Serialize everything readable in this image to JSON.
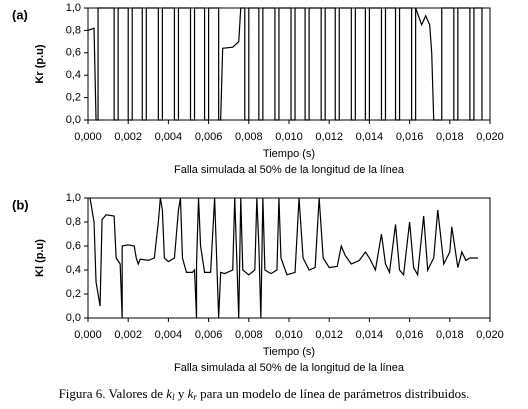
{
  "chart_data": [
    {
      "type": "line",
      "label": "(a)",
      "ylabel": "Kr (p.u)",
      "xlabel": "Tiempo (s)",
      "note": "Falla simulada al 50% de la longitud de la línea",
      "color": "#000000",
      "xlim": [
        0,
        0.02
      ],
      "ylim": [
        0,
        1
      ],
      "xticks": [
        {
          "value": 0,
          "label": "0,000"
        },
        {
          "value": 0.002,
          "label": "0,002"
        },
        {
          "value": 0.004,
          "label": "0,004"
        },
        {
          "value": 0.006,
          "label": "0,006"
        },
        {
          "value": 0.008,
          "label": "0,008"
        },
        {
          "value": 0.01,
          "label": "0,010"
        },
        {
          "value": 0.012,
          "label": "0,012"
        },
        {
          "value": 0.014,
          "label": "0,014"
        },
        {
          "value": 0.016,
          "label": "0,016"
        },
        {
          "value": 0.018,
          "label": "0,018"
        },
        {
          "value": 0.02,
          "label": "0,020"
        }
      ],
      "yticks": [
        {
          "value": 0,
          "label": "0,0"
        },
        {
          "value": 0.2,
          "label": "0,2"
        },
        {
          "value": 0.4,
          "label": "0,4"
        },
        {
          "value": 0.6,
          "label": "0,6"
        },
        {
          "value": 0.8,
          "label": "0,8"
        },
        {
          "value": 1,
          "label": "1,0"
        }
      ],
      "x": [
        0,
        0.0003,
        0.0004,
        0.0005,
        0.0005,
        0.0013,
        0.0013,
        0.0015,
        0.0015,
        0.002,
        0.002,
        0.0022,
        0.0022,
        0.0027,
        0.0027,
        0.0029,
        0.0029,
        0.0035,
        0.0035,
        0.0037,
        0.0037,
        0.0043,
        0.0043,
        0.0045,
        0.0045,
        0.0051,
        0.0051,
        0.0053,
        0.0053,
        0.0058,
        0.0058,
        0.006,
        0.006,
        0.0065,
        0.0065,
        0.0066,
        0.0067,
        0.0072,
        0.0075,
        0.0076,
        0.0078,
        0.0078,
        0.008,
        0.008,
        0.0085,
        0.0085,
        0.0087,
        0.0087,
        0.0093,
        0.0093,
        0.0095,
        0.0095,
        0.0101,
        0.0101,
        0.0103,
        0.0103,
        0.0108,
        0.0108,
        0.011,
        0.011,
        0.0116,
        0.0116,
        0.0118,
        0.0118,
        0.0123,
        0.0123,
        0.0125,
        0.0125,
        0.0131,
        0.0131,
        0.0133,
        0.0133,
        0.0138,
        0.0138,
        0.014,
        0.014,
        0.0146,
        0.0146,
        0.0148,
        0.0148,
        0.0153,
        0.0153,
        0.0155,
        0.0155,
        0.0161,
        0.0161,
        0.0163,
        0.0163,
        0.0166,
        0.0168,
        0.017,
        0.0171,
        0.0172,
        0.0176,
        0.0176,
        0.0182,
        0.0182,
        0.0184,
        0.0184,
        0.019,
        0.019,
        0.0192,
        0.0192,
        0.0196,
        0.0196
      ],
      "values": [
        0.8,
        0.82,
        0,
        0,
        1,
        1,
        0,
        0,
        1,
        1,
        0,
        0,
        1,
        1,
        0,
        0,
        1,
        1,
        0,
        0,
        1,
        1,
        0,
        0,
        1,
        1,
        0,
        0,
        1,
        1,
        0,
        0,
        1,
        1,
        0,
        0,
        0.64,
        0.65,
        0.7,
        1,
        1,
        0,
        0,
        1,
        1,
        0,
        0,
        1,
        1,
        0,
        0,
        1,
        1,
        0,
        0,
        1,
        1,
        0,
        0,
        1,
        1,
        0,
        0,
        1,
        1,
        0,
        0,
        1,
        1,
        0,
        0,
        1,
        1,
        0,
        0,
        1,
        1,
        0,
        0,
        1,
        1,
        0,
        0,
        1,
        1,
        0,
        0,
        1,
        0.85,
        0.93,
        0.85,
        0.6,
        0,
        0,
        1,
        1,
        0,
        0,
        1,
        1,
        0,
        0,
        1,
        1,
        0
      ]
    },
    {
      "type": "line",
      "label": "(b)",
      "ylabel": "Kl (p.u)",
      "xlabel": "Tiempo (s)",
      "note": "Falla simulada al 50% de la longitud de la línea",
      "color": "#000000",
      "xlim": [
        0,
        0.02
      ],
      "ylim": [
        0,
        1
      ],
      "xticks": [
        {
          "value": 0,
          "label": "0,000"
        },
        {
          "value": 0.002,
          "label": "0,002"
        },
        {
          "value": 0.004,
          "label": "0,004"
        },
        {
          "value": 0.006,
          "label": "0,006"
        },
        {
          "value": 0.008,
          "label": "0,008"
        },
        {
          "value": 0.01,
          "label": "0,010"
        },
        {
          "value": 0.012,
          "label": "0,012"
        },
        {
          "value": 0.014,
          "label": "0,014"
        },
        {
          "value": 0.016,
          "label": "0,016"
        },
        {
          "value": 0.018,
          "label": "0,018"
        },
        {
          "value": 0.02,
          "label": "0,020"
        }
      ],
      "yticks": [
        {
          "value": 0,
          "label": "0,0"
        },
        {
          "value": 0.2,
          "label": "0,2"
        },
        {
          "value": 0.4,
          "label": "0,4"
        },
        {
          "value": 0.6,
          "label": "0,6"
        },
        {
          "value": 0.8,
          "label": "0,8"
        },
        {
          "value": 1,
          "label": "1,0"
        }
      ],
      "x": [
        0.0001,
        0.0003,
        0.0004,
        0.0006,
        0.0007,
        0.0009,
        0.0013,
        0.0014,
        0.0016,
        0.0017,
        0.0017,
        0.002,
        0.0023,
        0.0024,
        0.0025,
        0.0026,
        0.003,
        0.0033,
        0.0035,
        0.0036,
        0.0037,
        0.0038,
        0.004,
        0.0043,
        0.0045,
        0.0046,
        0.0047,
        0.0049,
        0.0052,
        0.0053,
        0.0054,
        0.0054,
        0.0055,
        0.0056,
        0.0058,
        0.0061,
        0.0063,
        0.0064,
        0.0065,
        0.0066,
        0.0068,
        0.0072,
        0.0073,
        0.0074,
        0.0075,
        0.0076,
        0.0077,
        0.008,
        0.0083,
        0.0084,
        0.0085,
        0.0086,
        0.0087,
        0.0088,
        0.0091,
        0.0094,
        0.0095,
        0.0096,
        0.0099,
        0.0103,
        0.0105,
        0.0107,
        0.011,
        0.0113,
        0.0115,
        0.0117,
        0.012,
        0.0124,
        0.0126,
        0.0128,
        0.0131,
        0.0135,
        0.0138,
        0.014,
        0.0143,
        0.0146,
        0.0148,
        0.015,
        0.0153,
        0.0155,
        0.0157,
        0.016,
        0.0162,
        0.0164,
        0.0167,
        0.0169,
        0.0172,
        0.0174,
        0.0177,
        0.018,
        0.0181,
        0.0184,
        0.0186,
        0.0188,
        0.019,
        0.0194
      ],
      "values": [
        1,
        0.8,
        0.3,
        0.1,
        0.82,
        0.86,
        0.85,
        0.5,
        0.45,
        0,
        0.6,
        0.61,
        0.6,
        0.5,
        0.45,
        0.49,
        0.48,
        0.5,
        0.8,
        1,
        0.9,
        0.5,
        0.47,
        0.5,
        0.9,
        1,
        0.5,
        0.38,
        0.38,
        0.4,
        0,
        0.45,
        1,
        0.6,
        0.38,
        0.38,
        1,
        0.5,
        0,
        0.38,
        0.37,
        0.4,
        1,
        0.5,
        0,
        1,
        0.4,
        0.36,
        0.4,
        1,
        0.6,
        0,
        1,
        0.4,
        0.37,
        0.4,
        1,
        0.5,
        0.36,
        0.38,
        1,
        0.5,
        0.4,
        0.42,
        1,
        0.5,
        0.42,
        0.43,
        0.6,
        0.52,
        0.45,
        0.48,
        0.55,
        0.5,
        0.4,
        0.7,
        0.45,
        0.38,
        0.78,
        0.4,
        0.36,
        0.8,
        0.42,
        0.36,
        0.85,
        0.4,
        0.5,
        0.9,
        0.45,
        0.55,
        0.76,
        0.42,
        0.55,
        0.48,
        0.5,
        0.5
      ]
    }
  ],
  "caption": [
    "Figura 6. Valores de ",
    "k",
    "l",
    " y ",
    "k",
    "r",
    " para un modelo de línea de parámetros distribuidos."
  ]
}
